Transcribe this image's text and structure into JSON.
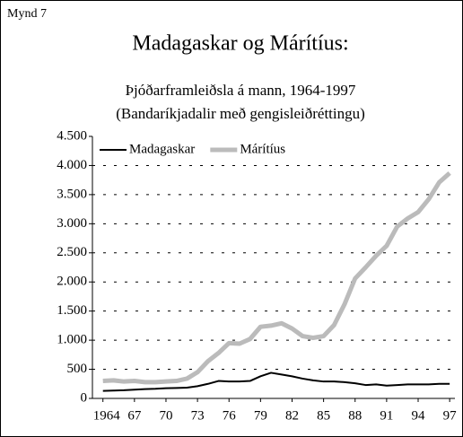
{
  "chart_data": {
    "type": "line",
    "label": "Mynd 7",
    "title": "Madagaskar og Márítíus:",
    "subtitle": [
      "Þjóðarframleiðsla á mann, 1964-1997",
      "(Bandaríkjadalir með gengisleiðréttingu)"
    ],
    "x": [
      1964,
      1965,
      1966,
      1967,
      1968,
      1969,
      1970,
      1971,
      1972,
      1973,
      1974,
      1975,
      1976,
      1977,
      1978,
      1979,
      1980,
      1981,
      1982,
      1983,
      1984,
      1985,
      1986,
      1987,
      1988,
      1989,
      1990,
      1991,
      1992,
      1993,
      1994,
      1995,
      1996,
      1997
    ],
    "series": [
      {
        "name": "Madagaskar",
        "color": "#000000",
        "width": 2,
        "values": [
          130,
          135,
          140,
          150,
          160,
          165,
          175,
          180,
          185,
          210,
          250,
          300,
          290,
          290,
          300,
          380,
          440,
          410,
          380,
          340,
          310,
          290,
          290,
          280,
          260,
          230,
          240,
          220,
          230,
          240,
          240,
          240,
          250,
          250
        ]
      },
      {
        "name": "Márítíus",
        "color": "#bbbbbb",
        "width": 5,
        "values": [
          300,
          310,
          290,
          300,
          280,
          280,
          290,
          300,
          340,
          450,
          640,
          780,
          950,
          940,
          1020,
          1230,
          1250,
          1290,
          1200,
          1070,
          1040,
          1070,
          1260,
          1620,
          2060,
          2250,
          2450,
          2620,
          2950,
          3090,
          3200,
          3420,
          3710,
          3870
        ]
      }
    ],
    "xlim": [
      1963,
      1997.5
    ],
    "xticks": [
      1964,
      {
        "value": 1967,
        "label": "67"
      },
      {
        "value": 1970,
        "label": "70"
      },
      {
        "value": 1973,
        "label": "73"
      },
      {
        "value": 1976,
        "label": "76"
      },
      {
        "value": 1979,
        "label": "79"
      },
      {
        "value": 1982,
        "label": "82"
      },
      {
        "value": 1985,
        "label": "85"
      },
      {
        "value": 1988,
        "label": "88"
      },
      {
        "value": 1991,
        "label": "91"
      },
      {
        "value": 1994,
        "label": "94"
      },
      {
        "value": 1997,
        "label": "97"
      }
    ],
    "ylim": [
      0,
      4500
    ],
    "yticks": [
      0,
      500,
      {
        "value": 1000,
        "label": "1.000"
      },
      {
        "value": 1500,
        "label": "1.500"
      },
      {
        "value": 2000,
        "label": "2.000"
      },
      {
        "value": 2500,
        "label": "2.500"
      },
      {
        "value": 3000,
        "label": "3.000"
      },
      {
        "value": 3500,
        "label": "3.500"
      },
      {
        "value": 4000,
        "label": "4.000"
      },
      {
        "value": 4500,
        "label": "4.500"
      }
    ],
    "grid": true,
    "legend": "top-left"
  }
}
